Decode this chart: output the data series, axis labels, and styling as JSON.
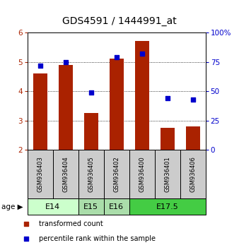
{
  "title": "GDS4591 / 1444991_at",
  "samples": [
    "GSM936403",
    "GSM936404",
    "GSM936405",
    "GSM936402",
    "GSM936400",
    "GSM936401",
    "GSM936406"
  ],
  "transformed_count": [
    4.6,
    4.9,
    3.25,
    5.1,
    5.7,
    2.75,
    2.8
  ],
  "percentile_rank": [
    72,
    75,
    49,
    79,
    82,
    44,
    43
  ],
  "ylim_left": [
    2,
    6
  ],
  "ylim_right": [
    0,
    100
  ],
  "yticks_left": [
    2,
    3,
    4,
    5,
    6
  ],
  "yticks_right": [
    0,
    25,
    50,
    75,
    100
  ],
  "ytick_labels_right": [
    "0",
    "25",
    "50",
    "75",
    "100%"
  ],
  "bar_color": "#aa2200",
  "dot_color": "#0000cc",
  "age_groups": [
    {
      "label": "E14",
      "samples": [
        "GSM936403",
        "GSM936404"
      ],
      "color": "#ccffcc"
    },
    {
      "label": "E15",
      "samples": [
        "GSM936405"
      ],
      "color": "#aaddaa"
    },
    {
      "label": "E16",
      "samples": [
        "GSM936402"
      ],
      "color": "#aaddaa"
    },
    {
      "label": "E17.5",
      "samples": [
        "GSM936400",
        "GSM936401",
        "GSM936406"
      ],
      "color": "#44cc44"
    }
  ],
  "legend_items": [
    {
      "label": "transformed count",
      "color": "#aa2200"
    },
    {
      "label": "percentile rank within the sample",
      "color": "#0000cc"
    }
  ],
  "bar_bottom": 2,
  "sample_box_color": "#cccccc",
  "title_fontsize": 10,
  "tick_fontsize": 7.5,
  "sample_fontsize": 6,
  "age_fontsize": 8,
  "legend_fontsize": 7
}
